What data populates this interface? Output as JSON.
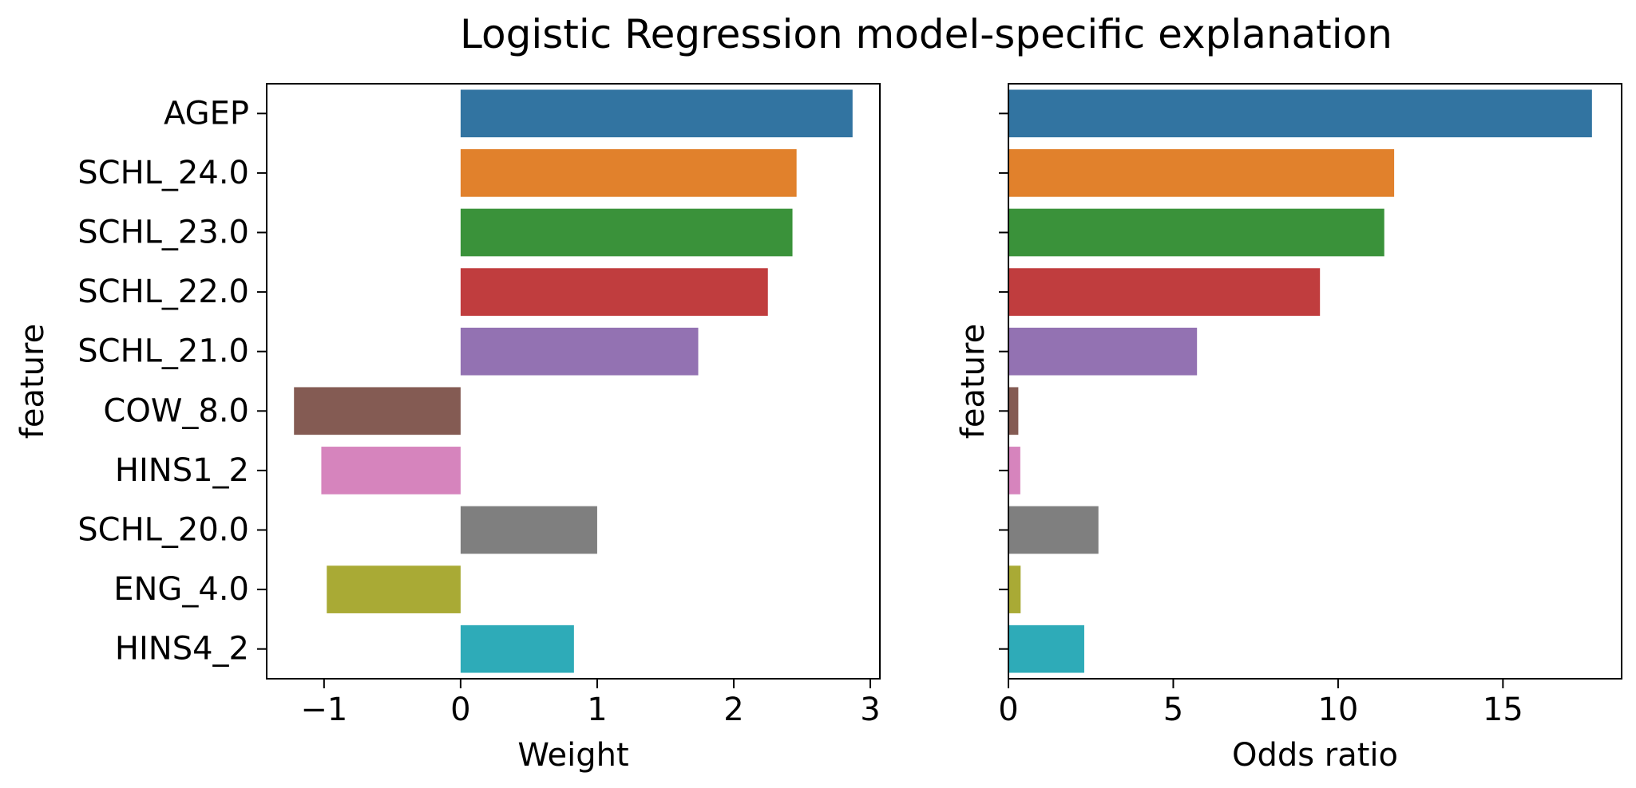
{
  "chart_data": {
    "title": "Logistic Regression model-specific explanation",
    "categories": [
      "AGEP",
      "SCHL_24.0",
      "SCHL_23.0",
      "SCHL_22.0",
      "SCHL_21.0",
      "COW_8.0",
      "HINS1_2",
      "SCHL_20.0",
      "ENG_4.0",
      "HINS4_2"
    ],
    "colors": [
      "#3274a1",
      "#e1812c",
      "#3a923a",
      "#c03d3e",
      "#9372b2",
      "#845b53",
      "#d684bd",
      "#7f7f7f",
      "#a9aa35",
      "#2eabb8"
    ],
    "panels": [
      {
        "type": "bar",
        "orientation": "horizontal",
        "xlabel": "Weight",
        "ylabel": "feature",
        "values": [
          2.87,
          2.46,
          2.43,
          2.25,
          1.74,
          -1.22,
          -1.02,
          1.0,
          -0.98,
          0.83
        ],
        "xlim": [
          -1.42,
          3.07
        ],
        "xticks": [
          -1,
          0,
          1,
          2,
          3
        ],
        "xtick_labels": [
          "−1",
          "0",
          "1",
          "2",
          "3"
        ]
      },
      {
        "type": "bar",
        "orientation": "horizontal",
        "xlabel": "Odds ratio",
        "ylabel": "feature",
        "values": [
          17.7,
          11.7,
          11.4,
          9.45,
          5.72,
          0.3,
          0.36,
          2.73,
          0.37,
          2.3
        ],
        "xlim": [
          0,
          18.6
        ],
        "xticks": [
          0,
          5,
          10,
          15
        ],
        "xtick_labels": [
          "0",
          "5",
          "10",
          "15"
        ]
      }
    ]
  }
}
